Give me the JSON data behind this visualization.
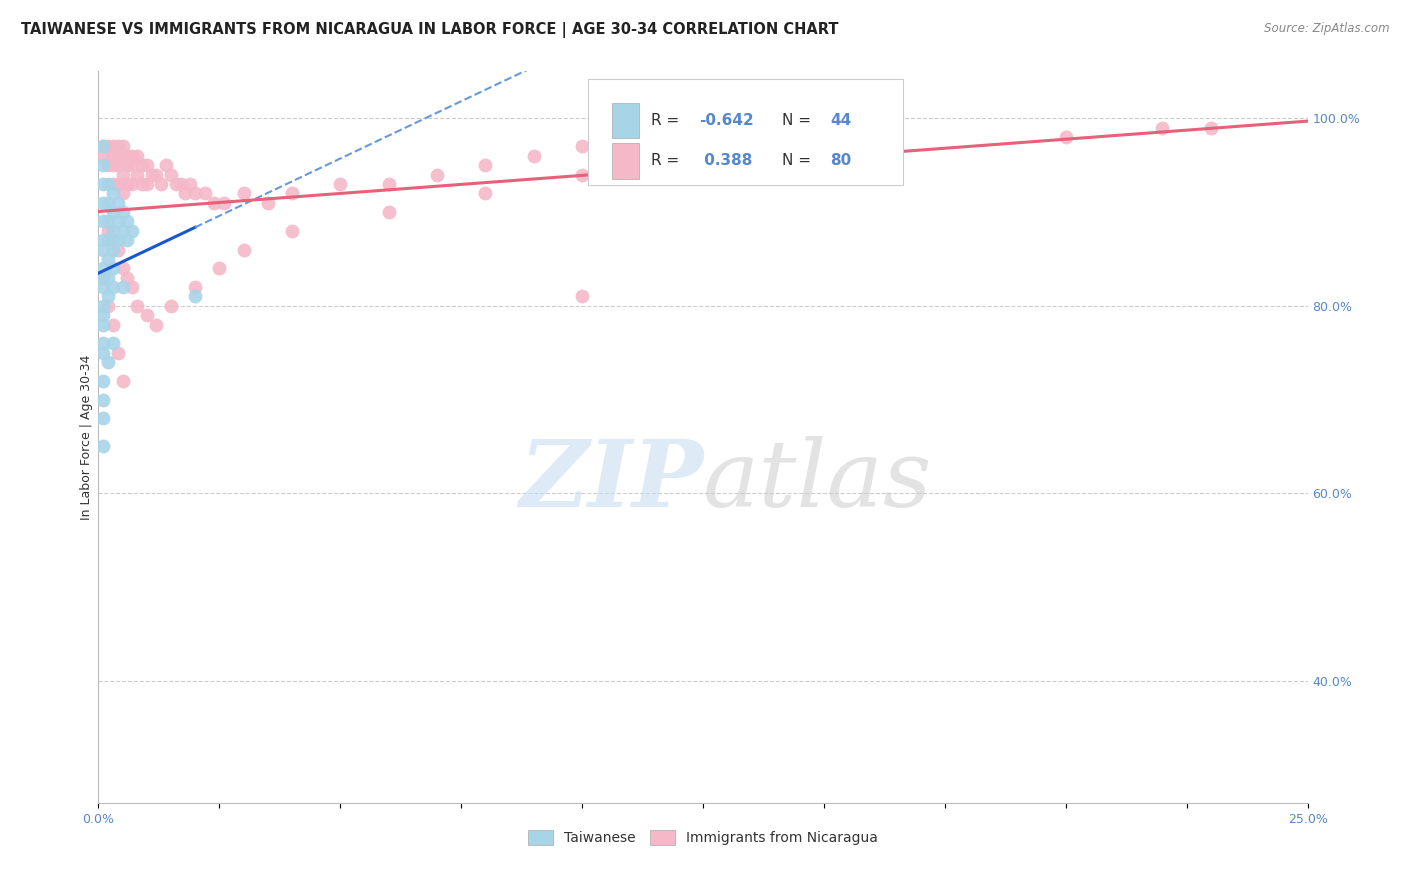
{
  "title": "TAIWANESE VS IMMIGRANTS FROM NICARAGUA IN LABOR FORCE | AGE 30-34 CORRELATION CHART",
  "source": "Source: ZipAtlas.com",
  "ylabel": "In Labor Force | Age 30-34",
  "xlim": [
    0.0,
    0.25
  ],
  "ylim": [
    0.27,
    1.05
  ],
  "background_color": "#ffffff",
  "taiwanese_color": "#a8d4e8",
  "nicaragua_color": "#f4b8c8",
  "trend_taiwan_solid_color": "#1a56cc",
  "trend_taiwan_dash_color": "#6699dd",
  "trend_nicaragua_color": "#e8607a",
  "tick_color": "#5588cc",
  "title_fontsize": 10.5,
  "axis_label_fontsize": 9,
  "tick_fontsize": 9,
  "source_fontsize": 8.5,
  "tw_x": [
    0.001,
    0.001,
    0.001,
    0.001,
    0.001,
    0.001,
    0.001,
    0.001,
    0.001,
    0.001,
    0.001,
    0.001,
    0.001,
    0.001,
    0.001,
    0.002,
    0.002,
    0.002,
    0.002,
    0.002,
    0.002,
    0.002,
    0.003,
    0.003,
    0.003,
    0.003,
    0.003,
    0.003,
    0.004,
    0.004,
    0.004,
    0.005,
    0.005,
    0.006,
    0.006,
    0.007,
    0.001,
    0.001,
    0.002,
    0.003,
    0.005,
    0.001,
    0.001,
    0.02
  ],
  "tw_y": [
    0.97,
    0.95,
    0.93,
    0.91,
    0.89,
    0.87,
    0.86,
    0.84,
    0.83,
    0.82,
    0.8,
    0.79,
    0.78,
    0.76,
    0.75,
    0.93,
    0.91,
    0.89,
    0.87,
    0.85,
    0.83,
    0.81,
    0.92,
    0.9,
    0.88,
    0.86,
    0.84,
    0.82,
    0.91,
    0.89,
    0.87,
    0.9,
    0.88,
    0.89,
    0.87,
    0.88,
    0.72,
    0.7,
    0.74,
    0.76,
    0.82,
    0.68,
    0.65,
    0.81
  ],
  "ni_x": [
    0.001,
    0.001,
    0.002,
    0.002,
    0.003,
    0.003,
    0.003,
    0.003,
    0.004,
    0.004,
    0.004,
    0.004,
    0.005,
    0.005,
    0.005,
    0.005,
    0.006,
    0.006,
    0.006,
    0.007,
    0.007,
    0.007,
    0.008,
    0.008,
    0.009,
    0.009,
    0.01,
    0.01,
    0.011,
    0.012,
    0.013,
    0.014,
    0.015,
    0.016,
    0.017,
    0.018,
    0.019,
    0.02,
    0.022,
    0.024,
    0.026,
    0.03,
    0.035,
    0.04,
    0.05,
    0.06,
    0.07,
    0.08,
    0.09,
    0.1,
    0.11,
    0.12,
    0.002,
    0.003,
    0.004,
    0.005,
    0.006,
    0.007,
    0.008,
    0.01,
    0.012,
    0.015,
    0.02,
    0.025,
    0.03,
    0.04,
    0.06,
    0.08,
    0.1,
    0.13,
    0.16,
    0.2,
    0.22,
    0.23,
    0.001,
    0.002,
    0.003,
    0.004,
    0.005,
    0.1
  ],
  "ni_y": [
    0.97,
    0.96,
    0.97,
    0.95,
    0.97,
    0.96,
    0.95,
    0.93,
    0.97,
    0.96,
    0.95,
    0.93,
    0.97,
    0.96,
    0.94,
    0.92,
    0.96,
    0.95,
    0.93,
    0.96,
    0.95,
    0.93,
    0.96,
    0.94,
    0.95,
    0.93,
    0.95,
    0.93,
    0.94,
    0.94,
    0.93,
    0.95,
    0.94,
    0.93,
    0.93,
    0.92,
    0.93,
    0.92,
    0.92,
    0.91,
    0.91,
    0.92,
    0.91,
    0.92,
    0.93,
    0.93,
    0.94,
    0.95,
    0.96,
    0.97,
    0.97,
    0.98,
    0.88,
    0.87,
    0.86,
    0.84,
    0.83,
    0.82,
    0.8,
    0.79,
    0.78,
    0.8,
    0.82,
    0.84,
    0.86,
    0.88,
    0.9,
    0.92,
    0.94,
    0.96,
    0.97,
    0.98,
    0.99,
    0.99,
    0.83,
    0.8,
    0.78,
    0.75,
    0.72,
    0.81
  ]
}
